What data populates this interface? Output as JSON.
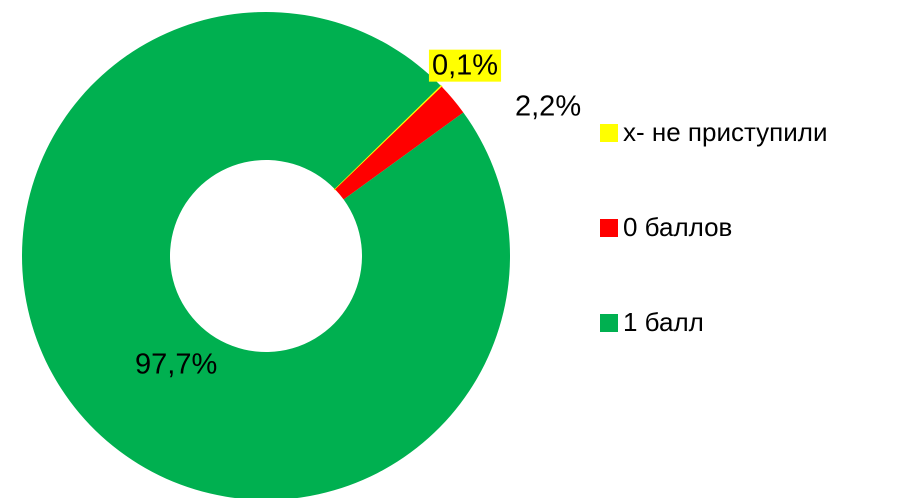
{
  "chart_data": {
    "type": "donut",
    "categories": [
      "x- не приступили",
      "0 баллов",
      "1 балл"
    ],
    "values": [
      0.1,
      2.2,
      97.7
    ],
    "value_labels": [
      "0,1%",
      "2,2%",
      "97,7%"
    ],
    "colors": [
      "#ffff00",
      "#ff0000",
      "#00b050"
    ]
  }
}
